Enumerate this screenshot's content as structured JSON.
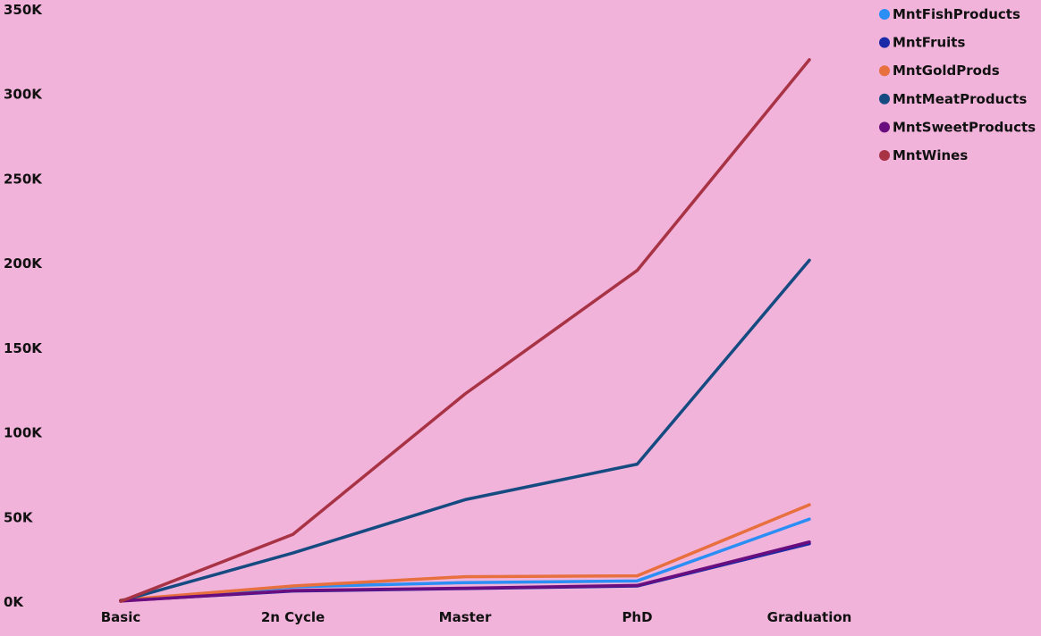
{
  "chart_data": {
    "type": "line",
    "title": "",
    "xlabel": "",
    "ylabel": "",
    "categories": [
      "Basic",
      "2n Cycle",
      "Master",
      "PhD",
      "Graduation"
    ],
    "ylim": [
      0,
      350000
    ],
    "y_ticks": [
      0,
      50000,
      100000,
      150000,
      200000,
      250000,
      300000,
      350000
    ],
    "y_tick_labels": [
      "0K",
      "50K",
      "100K",
      "150K",
      "200K",
      "250K",
      "300K",
      "350K"
    ],
    "grid": false,
    "legend_position": "top-right",
    "series": [
      {
        "name": "MntFishProducts",
        "color": "#2b8ef5",
        "values": [
          900,
          9000,
          11500,
          12500,
          49000
        ]
      },
      {
        "name": "MntFruits",
        "color": "#1b2aa6",
        "values": [
          800,
          6500,
          8000,
          9500,
          34500
        ]
      },
      {
        "name": "MntGoldProds",
        "color": "#e8703f",
        "values": [
          1200,
          9500,
          15000,
          15500,
          57500
        ]
      },
      {
        "name": "MntMeatProducts",
        "color": "#164b82",
        "values": [
          700,
          29000,
          60500,
          81500,
          202000
        ]
      },
      {
        "name": "MntSweetProducts",
        "color": "#6a0d7e",
        "values": [
          600,
          6800,
          8200,
          9800,
          35500
        ]
      },
      {
        "name": "MntWines",
        "color": "#a83345",
        "values": [
          400,
          40000,
          123000,
          196000,
          320500
        ]
      }
    ]
  }
}
